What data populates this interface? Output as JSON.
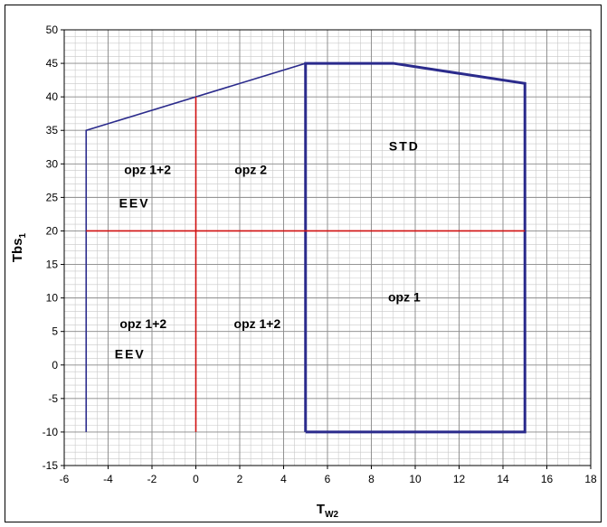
{
  "chart_data": {
    "type": "line",
    "xlabel_main": "T",
    "xlabel_sub": "W2",
    "ylabel_main": "Tbs",
    "ylabel_sub": "1",
    "xlim": [
      -6,
      18
    ],
    "ylim": [
      -15,
      50
    ],
    "x_ticks": [
      -6,
      -4,
      -2,
      0,
      2,
      4,
      6,
      8,
      10,
      12,
      14,
      16,
      18
    ],
    "y_ticks": [
      -15,
      -10,
      -5,
      0,
      5,
      10,
      15,
      20,
      25,
      30,
      35,
      40,
      45,
      50
    ],
    "grid": true,
    "series": [
      {
        "color": "#2B2B8C",
        "weight": "thin",
        "x": [
          -5,
          -5,
          5,
          5
        ],
        "y": [
          -10,
          35,
          45,
          -10
        ]
      },
      {
        "color": "#2B2B8C",
        "weight": "thick",
        "x": [
          5,
          5,
          9,
          15,
          15,
          5
        ],
        "y": [
          -10,
          45,
          45,
          42,
          -10,
          -10
        ]
      },
      {
        "color": "#D01010",
        "weight": "thin",
        "x": [
          0,
          0
        ],
        "y": [
          -10,
          40
        ]
      },
      {
        "color": "#D01010",
        "weight": "thin",
        "x": [
          -5,
          15
        ],
        "y": [
          20,
          20
        ]
      }
    ],
    "annotations": [
      {
        "text": "STD",
        "x": 9.5,
        "y": 32
      },
      {
        "text": "opz 1+2",
        "x": -2.2,
        "y": 28.5
      },
      {
        "text": "opz 2",
        "x": 2.5,
        "y": 28.5
      },
      {
        "text": "EEV",
        "x": -2.8,
        "y": 23.5
      },
      {
        "text": "opz 1",
        "x": 9.5,
        "y": 9.5
      },
      {
        "text": "opz 1+2",
        "x": -2.4,
        "y": 5.5
      },
      {
        "text": "opz 1+2",
        "x": 2.8,
        "y": 5.5
      },
      {
        "text": "EEV",
        "x": -3.0,
        "y": 1
      }
    ]
  }
}
